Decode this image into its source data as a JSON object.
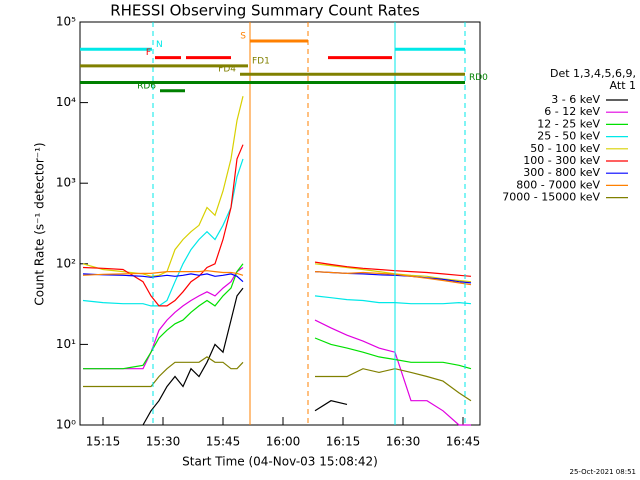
{
  "chart_data": {
    "type": "line",
    "title": "RHESSI Observing Summary Count Rates",
    "xlabel": "Start Time (04-Nov-03 15:08:42)",
    "ylabel": "Count Rate (s⁻¹ detector⁻¹)",
    "timestamp": "25-Oct-2021 08:51",
    "log_y": true,
    "xlim": [
      909.25,
      1009.25
    ],
    "ylim": [
      1,
      100000
    ],
    "xticks": [
      {
        "value": 915,
        "label": "15:15"
      },
      {
        "value": 930,
        "label": "15:30"
      },
      {
        "value": 945,
        "label": "15:45"
      },
      {
        "value": 960,
        "label": "16:00"
      },
      {
        "value": 975,
        "label": "16:15"
      },
      {
        "value": 990,
        "label": "16:30"
      },
      {
        "value": 1005,
        "label": "16:45"
      }
    ],
    "yticks": [
      {
        "value": 1,
        "label": "10⁰"
      },
      {
        "value": 10,
        "label": "10¹"
      },
      {
        "value": 100,
        "label": "10²"
      },
      {
        "value": 1000,
        "label": "10³"
      },
      {
        "value": 10000,
        "label": "10⁴"
      },
      {
        "value": 100000,
        "label": "10⁵"
      }
    ],
    "legend_title": [
      "Det 1,3,4,5,6,9,",
      "Att 1"
    ],
    "x": [
      910,
      915,
      920,
      925,
      927,
      929,
      931,
      933,
      935,
      937,
      939,
      941,
      943,
      945,
      947,
      948.5,
      950,
      959,
      968,
      972,
      976,
      980,
      984,
      988,
      992,
      996,
      1000,
      1004,
      1007
    ],
    "series": [
      {
        "name": "3 - 6 keV",
        "color": "#000000",
        "values": [
          null,
          null,
          null,
          1,
          1.5,
          2,
          3,
          4,
          3,
          5,
          4,
          6,
          10,
          8,
          20,
          40,
          50,
          null,
          1.5,
          2,
          1.8,
          null,
          null,
          null,
          null,
          null,
          null,
          null,
          null
        ]
      },
      {
        "name": "6 - 12 keV",
        "color": "#e000e0",
        "values": [
          5,
          5,
          5,
          5,
          8,
          15,
          20,
          25,
          30,
          35,
          40,
          45,
          40,
          50,
          60,
          80,
          90,
          null,
          20,
          16,
          13,
          11,
          9,
          8,
          2,
          2,
          1.5,
          1,
          1
        ]
      },
      {
        "name": "12 - 25 keV",
        "color": "#00e000",
        "values": [
          5,
          5,
          5,
          5.5,
          8,
          12,
          15,
          18,
          20,
          25,
          30,
          35,
          30,
          40,
          50,
          80,
          100,
          null,
          12,
          10,
          9,
          8,
          7,
          6.5,
          6,
          6,
          6,
          5.5,
          5
        ]
      },
      {
        "name": "25 - 50 keV",
        "color": "#00e8e8",
        "values": [
          35,
          33,
          32,
          32,
          30,
          30,
          35,
          60,
          100,
          150,
          200,
          250,
          200,
          300,
          500,
          1200,
          2000,
          null,
          40,
          38,
          36,
          35,
          33,
          33,
          32,
          32,
          32,
          33,
          32
        ]
      },
      {
        "name": "50 - 100 keV",
        "color": "#d8d000",
        "values": [
          100,
          85,
          80,
          75,
          70,
          72,
          80,
          150,
          200,
          250,
          300,
          500,
          400,
          800,
          2000,
          6000,
          12000,
          null,
          100,
          95,
          90,
          85,
          80,
          75,
          72,
          70,
          65,
          62,
          60
        ]
      },
      {
        "name": "100 - 300 keV",
        "color": "#ff0000",
        "values": [
          90,
          88,
          85,
          60,
          40,
          30,
          30,
          35,
          45,
          60,
          70,
          90,
          100,
          200,
          500,
          2000,
          3000,
          null,
          105,
          98,
          92,
          88,
          85,
          82,
          80,
          78,
          75,
          72,
          70
        ]
      },
      {
        "name": "300 - 800 keV",
        "color": "#0000ff",
        "values": [
          75,
          73,
          72,
          70,
          68,
          70,
          72,
          70,
          72,
          75,
          72,
          75,
          70,
          72,
          75,
          70,
          60,
          null,
          80,
          78,
          76,
          75,
          73,
          72,
          70,
          67,
          64,
          60,
          58
        ]
      },
      {
        "name": "800 - 7000 keV",
        "color": "#ff8000",
        "values": [
          72,
          74,
          75,
          76,
          76,
          78,
          80,
          80,
          80,
          80,
          80,
          82,
          80,
          78,
          78,
          76,
          72,
          null,
          80,
          78,
          76,
          78,
          76,
          74,
          70,
          66,
          62,
          58,
          55
        ]
      },
      {
        "name": "7000 - 15000 keV",
        "color": "#808000",
        "values": [
          3,
          3,
          3,
          3,
          3,
          4,
          5,
          6,
          6,
          6,
          6,
          7,
          6,
          6,
          5,
          5,
          6,
          null,
          4,
          4,
          4,
          5,
          4.5,
          5,
          4.5,
          4,
          3.5,
          2.5,
          2
        ]
      }
    ],
    "vlines": [
      {
        "x": 927.5,
        "color": "#00e8e8",
        "dashed": true
      },
      {
        "x": 951.75,
        "color": "#ff8000",
        "dashed": false
      },
      {
        "x": 966.25,
        "color": "#ff8000",
        "dashed": true
      },
      {
        "x": 988,
        "color": "#00e8e8",
        "dashed": false
      },
      {
        "x": 1005.5,
        "color": "#00e8e8",
        "dashed": true
      }
    ],
    "flags": [
      {
        "label": "S",
        "color": "#ff8000",
        "intervals": [
          [
            951.75,
            966.25
          ]
        ]
      },
      {
        "label": "N",
        "color": "#00e8e8",
        "intervals": [
          [
            909.25,
            927.25
          ],
          [
            988,
            1005.5
          ]
        ]
      },
      {
        "label": "F",
        "color": "#ff0000",
        "intervals": [
          [
            928,
            934.5
          ],
          [
            935.75,
            947
          ],
          [
            971.25,
            987.25
          ]
        ]
      },
      {
        "label": "FD1",
        "color": "#808000",
        "intervals": [
          [
            909.25,
            951.25
          ]
        ]
      },
      {
        "label": "FD4",
        "color": "#808000",
        "intervals": [
          [
            949.25,
            1005.5
          ]
        ]
      },
      {
        "label": "RD0",
        "color": "#008000",
        "intervals": [
          [
            909.25,
            1005.5
          ]
        ]
      },
      {
        "label": "RD6",
        "color": "#008000",
        "intervals": [
          [
            929.25,
            935.5
          ]
        ]
      }
    ]
  }
}
